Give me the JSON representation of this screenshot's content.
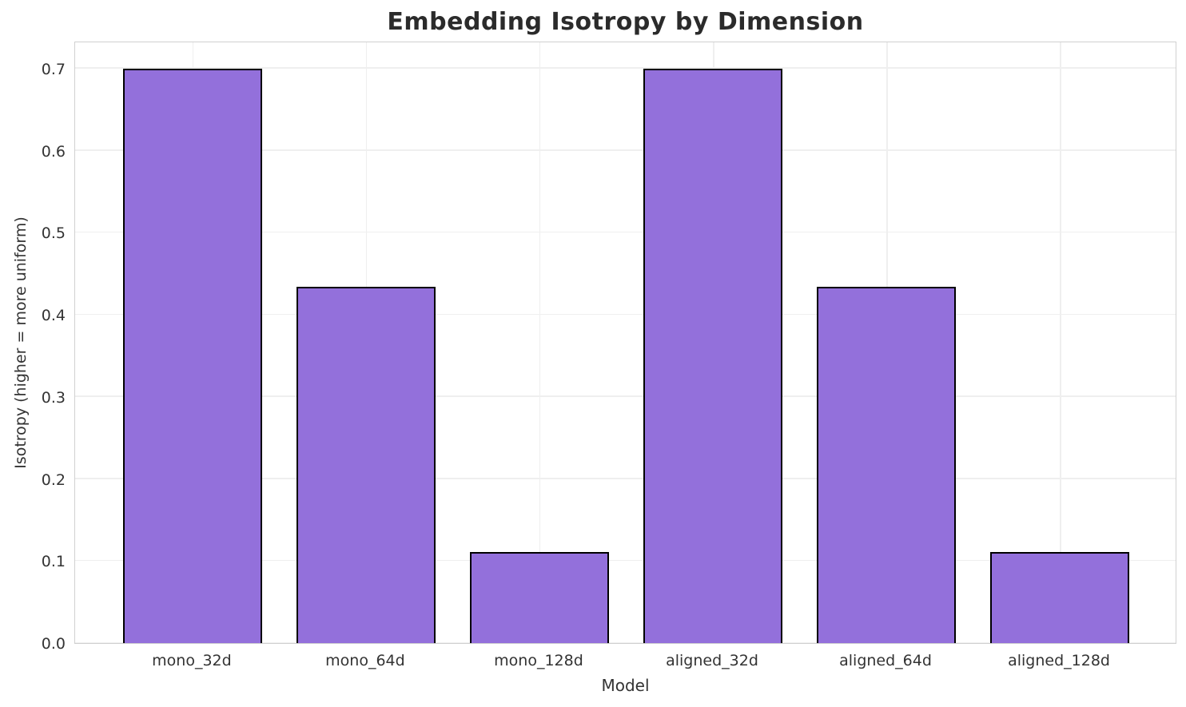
{
  "chart_data": {
    "type": "bar",
    "title": "Embedding Isotropy by Dimension",
    "xlabel": "Model",
    "ylabel": "Isotropy (higher = more uniform)",
    "categories": [
      "mono_32d",
      "mono_64d",
      "mono_128d",
      "aligned_32d",
      "aligned_64d",
      "aligned_128d"
    ],
    "values": [
      0.7,
      0.434,
      0.111,
      0.7,
      0.434,
      0.111
    ],
    "yticks": [
      0.0,
      0.1,
      0.2,
      0.3,
      0.4,
      0.5,
      0.6,
      0.7
    ],
    "ytick_labels": [
      "0.0",
      "0.1",
      "0.2",
      "0.3",
      "0.4",
      "0.5",
      "0.6",
      "0.7"
    ],
    "ylim": [
      0,
      0.734
    ],
    "xlim": [
      -0.677,
      5.677
    ],
    "bar_width_units": 0.8,
    "grid": true,
    "legend": "none",
    "colors": {
      "bar_fill": "#9370DB",
      "bar_edge": "#000000",
      "gridline": "#efefef",
      "spine": "#d0d0d0",
      "title_text": "#2b2b2b",
      "tick_text": "#333333",
      "background": "#ffffff"
    }
  }
}
